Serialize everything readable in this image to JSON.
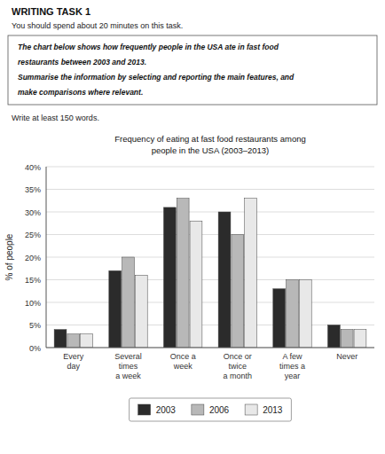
{
  "chart_data": {
    "type": "bar",
    "title": "Frequency of eating at fast food restaurants among\npeople in the USA (2003–2013)",
    "annotations": [
      "WRITING TASK 1",
      "You should spend about 20 minutes on this task.",
      "The chart below shows how frequently people in the USA ate in fast food",
      "restaurants between 2003 and 2013.",
      "Summarise the information by selecting and reporting the main features, and",
      "make comparisons where relevant.",
      "Write at least 150 words."
    ],
    "categories": [
      "Every\nday",
      "Several\ntimes\na week",
      "Once a\nweek",
      "Once or\ntwice\na month",
      "A few\ntimes a\nyear",
      "Never"
    ],
    "series": [
      {
        "name": "2003",
        "color": "#2b2b2b",
        "values": [
          4,
          17,
          31,
          30,
          13,
          5
        ]
      },
      {
        "name": "2006",
        "color": "#b8b8b8",
        "values": [
          3,
          20,
          33,
          25,
          15,
          4
        ]
      },
      {
        "name": "2013",
        "color": "#e8e8e8",
        "values": [
          3,
          16,
          28,
          33,
          15,
          4
        ]
      }
    ],
    "ylabel": "% of people",
    "ylim": [
      0,
      40
    ],
    "yticks": [
      {
        "value": 0,
        "label": "0%"
      },
      {
        "value": 5,
        "label": "5%"
      },
      {
        "value": 10,
        "label": "10%"
      },
      {
        "value": 15,
        "label": "15%"
      },
      {
        "value": 20,
        "label": "20%"
      },
      {
        "value": 25,
        "label": "25%"
      },
      {
        "value": 30,
        "label": "30%"
      },
      {
        "value": 35,
        "label": "35%"
      },
      {
        "value": 40,
        "label": "40%"
      }
    ],
    "grid": true,
    "legend": "bottom"
  }
}
